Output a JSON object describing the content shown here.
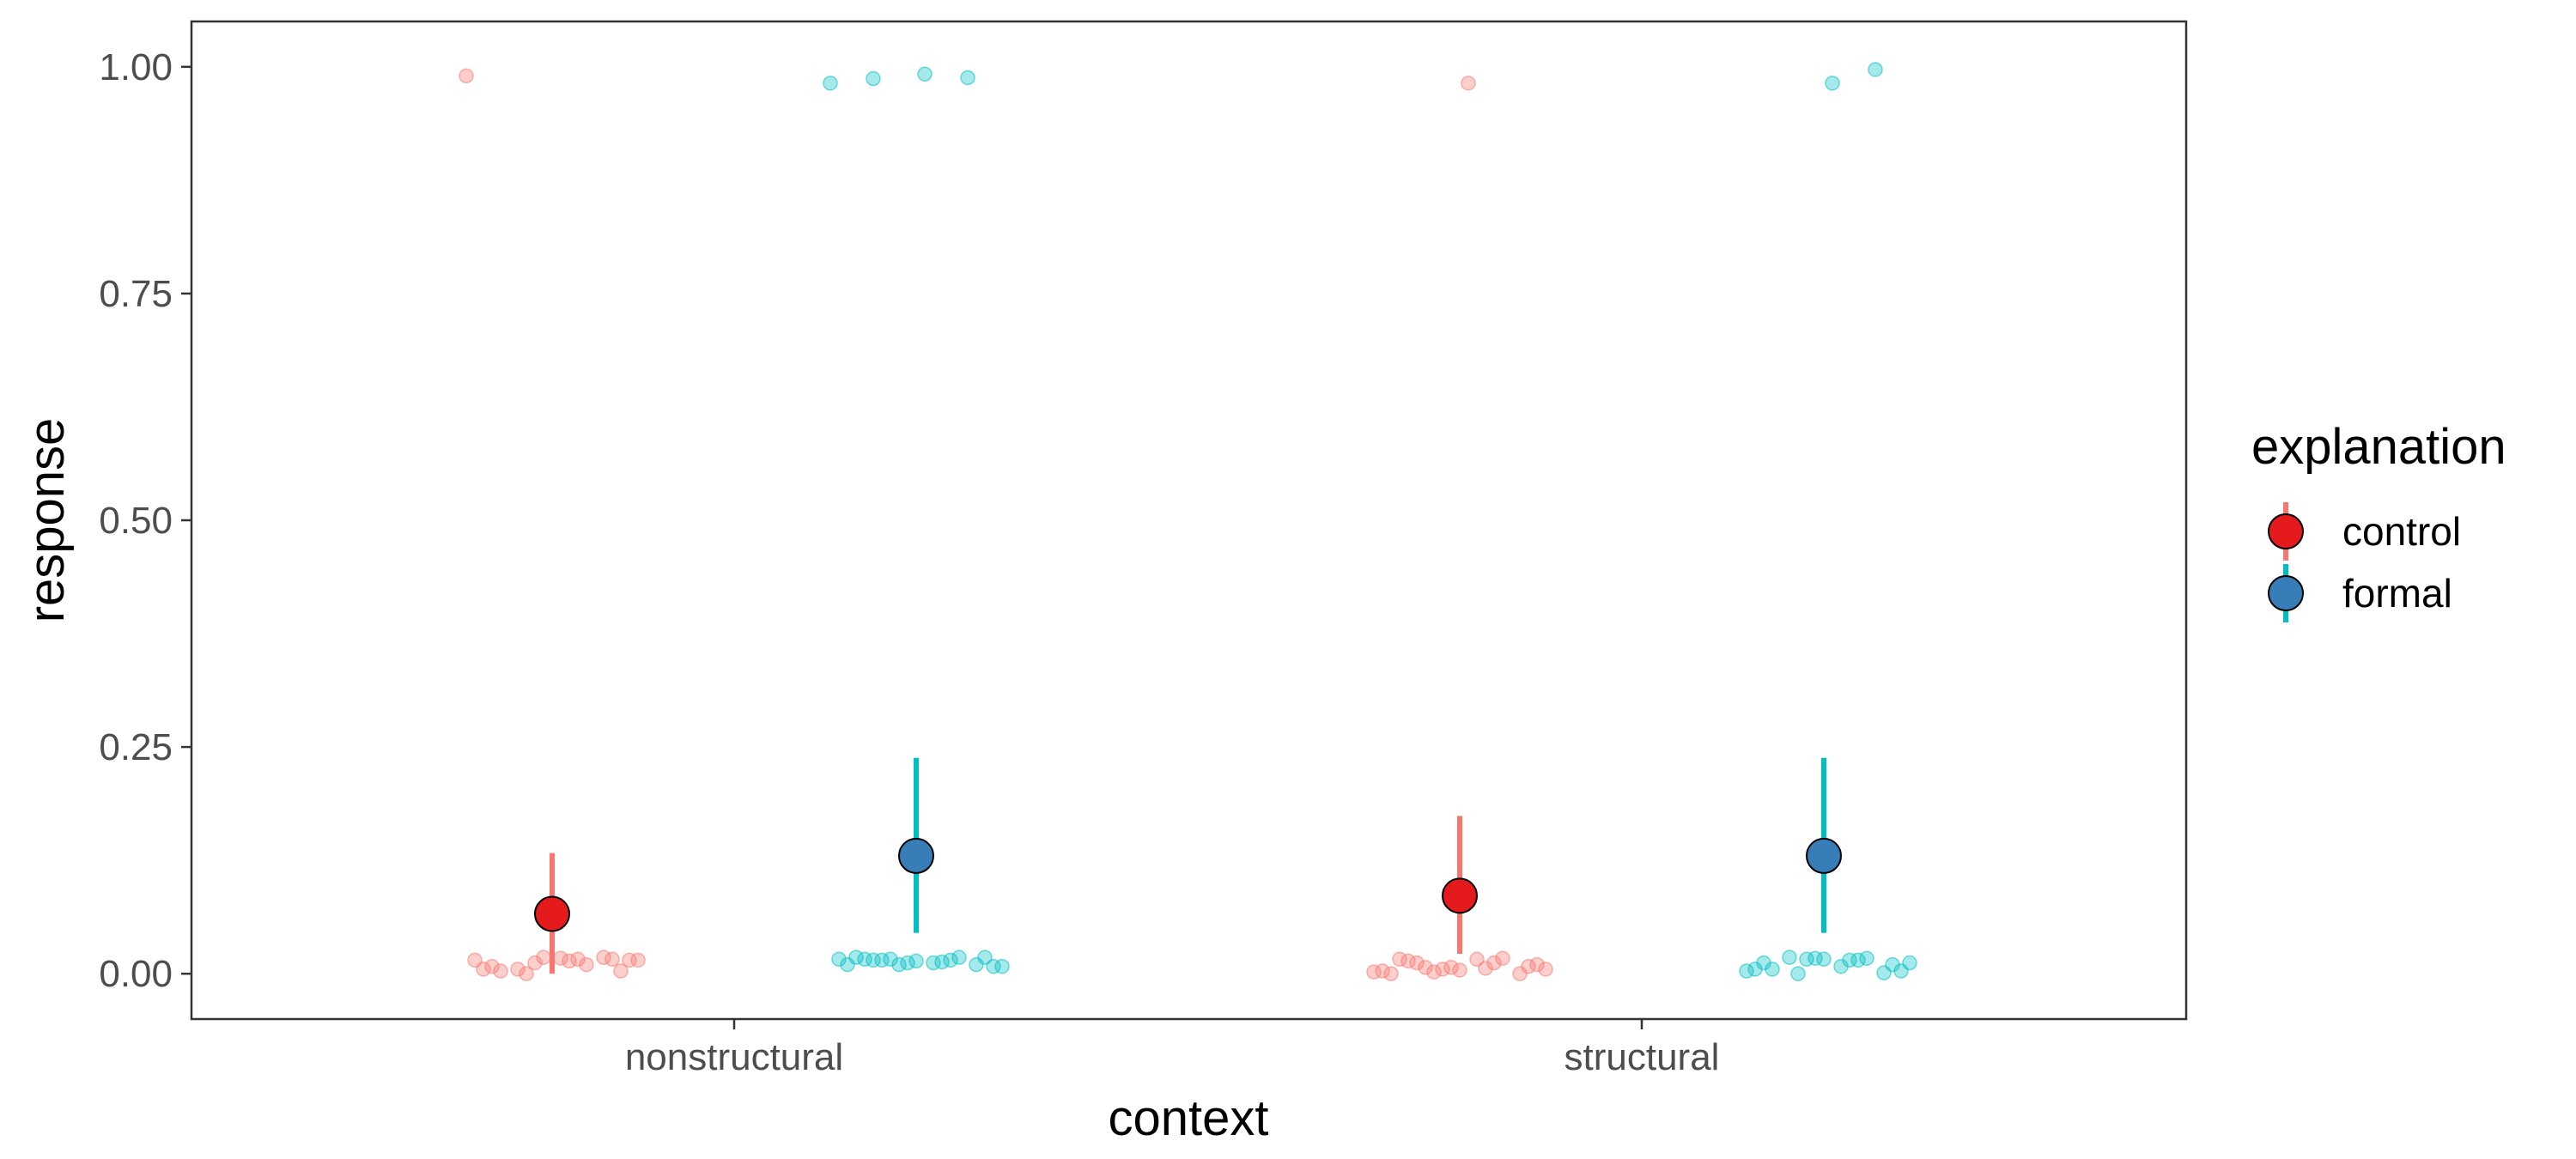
{
  "chart_data": {
    "type": "scatter",
    "xlabel": "context",
    "ylabel": "response",
    "categories": [
      "nonstructural",
      "structural"
    ],
    "ylim": [
      -0.05,
      1.05
    ],
    "yticks": [
      0.0,
      0.25,
      0.5,
      0.75,
      1.0
    ],
    "ytick_labels": [
      "0.00",
      "0.25",
      "0.50",
      "0.75",
      "1.00"
    ],
    "grid": false,
    "legend": {
      "title": "explanation",
      "position": "right"
    },
    "series": [
      {
        "name": "control",
        "color": "#F8766D",
        "point_fill": "#E41A1C",
        "summary": [
          {
            "context": "nonstructural",
            "mean": 0.066,
            "lower": 0.0,
            "upper": 0.133
          },
          {
            "context": "structural",
            "mean": 0.086,
            "lower": 0.022,
            "upper": 0.174
          }
        ],
        "raw": {
          "nonstructural": [
            0.99,
            0.018,
            0.017,
            0.005,
            0.015,
            0.016,
            0.014,
            0.0,
            0.005,
            0.003,
            0.016,
            0.012,
            0.008,
            0.015,
            0.01,
            0.018,
            0.003,
            0.015
          ],
          "structural": [
            0.982,
            0.007,
            0.003,
            0.0,
            0.016,
            0.002,
            0.0,
            0.008,
            0.006,
            0.005,
            0.016,
            0.01,
            0.012,
            0.007,
            0.014,
            0.005,
            0.017,
            0.004,
            0.012,
            0.002
          ]
        }
      },
      {
        "name": "formal",
        "color": "#00BFC4",
        "point_fill": "#377EB8",
        "summary": [
          {
            "context": "nonstructural",
            "mean": 0.13,
            "lower": 0.045,
            "upper": 0.238
          },
          {
            "context": "structural",
            "mean": 0.13,
            "lower": 0.045,
            "upper": 0.238
          }
        ],
        "raw": {
          "nonstructural": [
            0.987,
            0.982,
            0.988,
            0.992,
            0.015,
            0.016,
            0.01,
            0.012,
            0.016,
            0.01,
            0.018,
            0.013,
            0.01,
            0.018,
            0.008,
            0.015,
            0.012,
            0.016,
            0.008,
            0.018,
            0.014,
            0.015
          ],
          "structural": [
            0.997,
            0.982,
            0.018,
            0.003,
            0.001,
            0.008,
            0.0,
            0.005,
            0.01,
            0.015,
            0.016,
            0.012,
            0.003,
            0.015,
            0.017,
            0.005,
            0.012,
            0.017,
            0.016
          ]
        }
      }
    ]
  }
}
